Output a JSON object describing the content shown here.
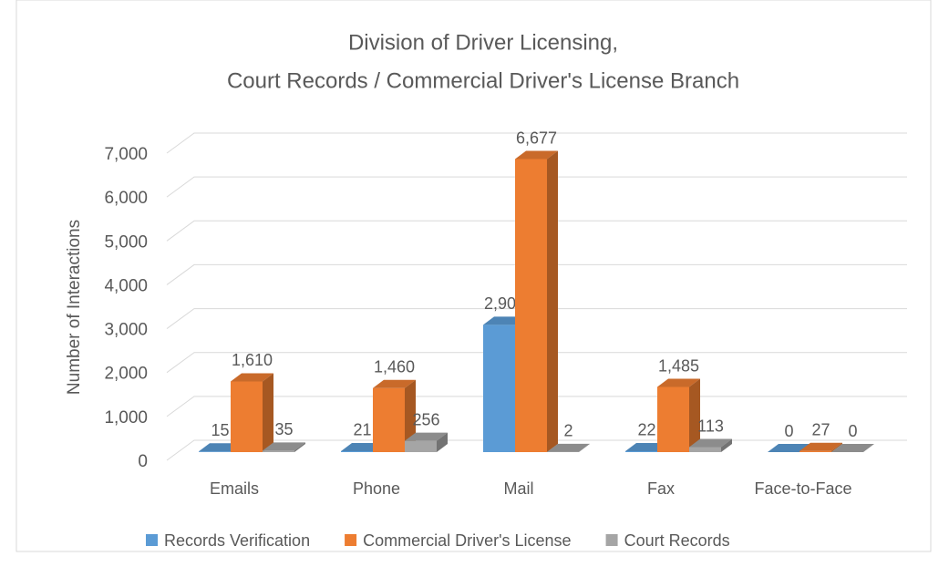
{
  "chart_data": {
    "type": "bar3d",
    "title": [
      "Division of Driver Licensing,",
      "Court Records / Commercial Driver's License Branch"
    ],
    "y_label": "Number of Interactions",
    "categories": [
      "Emails",
      "Phone",
      "Mail",
      "Fax",
      "Face-to-Face"
    ],
    "series": [
      {
        "name": "Records Verification",
        "color": "#5b9bd5",
        "values": [
          15,
          21,
          2900,
          22,
          0
        ],
        "value_labels": [
          "15",
          "21",
          "2,900",
          "22",
          "0"
        ]
      },
      {
        "name": "Commercial Driver's License",
        "color": "#ed7d31",
        "values": [
          1610,
          1460,
          6677,
          1485,
          27
        ],
        "value_labels": [
          "1,610",
          "1,460",
          "6,677",
          "1,485",
          "27"
        ]
      },
      {
        "name": "Court Records",
        "color": "#a5a5a5",
        "values": [
          35,
          256,
          2,
          113,
          0
        ],
        "value_labels": [
          "35",
          "256",
          "2",
          "113",
          "0"
        ]
      }
    ],
    "ylim": [
      0,
      7000
    ],
    "yticks": [
      0,
      {
        "value": 1000,
        "label": "1,000"
      },
      {
        "value": 2000,
        "label": "2,000"
      },
      {
        "value": 3000,
        "label": "3,000"
      },
      {
        "value": 4000,
        "label": "4,000"
      },
      {
        "value": 5000,
        "label": "5,000"
      },
      {
        "value": 6000,
        "label": "6,000"
      },
      {
        "value": 7000,
        "label": "7,000"
      }
    ],
    "grid": true,
    "legend": "bottom"
  }
}
